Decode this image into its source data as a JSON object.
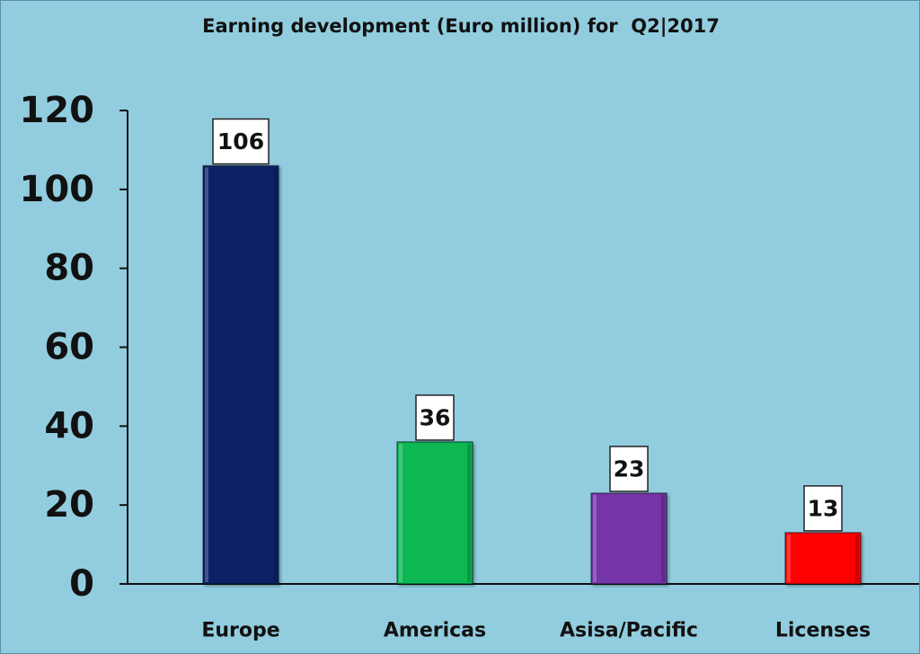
{
  "chart_data": {
    "type": "bar",
    "title": "Earning development (Euro million) for  Q2|2017",
    "categories": [
      "Europe",
      "Americas",
      "Asisa/Pacific",
      "Licenses"
    ],
    "values": [
      106,
      36,
      23,
      13
    ],
    "bar_colors": [
      "#0b2466",
      "#08b852",
      "#7535a8",
      "#ff0000"
    ],
    "ylim": [
      0,
      120
    ],
    "yticks": [
      0,
      20,
      40,
      60,
      80,
      100,
      120
    ],
    "xlabel": "",
    "ylabel": "",
    "grid": false,
    "legend": "none",
    "data_labels": true,
    "background_color": "#92cddf"
  }
}
